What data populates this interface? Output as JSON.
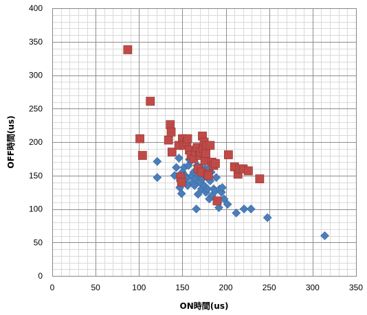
{
  "chart_data": {
    "type": "scatter",
    "title": "",
    "xlabel": "ON時間(us)",
    "ylabel": "OFF時間(us)",
    "xlim": [
      0,
      350
    ],
    "ylim": [
      0,
      400
    ],
    "x_ticks": [
      0,
      50,
      100,
      150,
      200,
      250,
      300,
      350
    ],
    "y_ticks": [
      0,
      50,
      100,
      150,
      200,
      250,
      300,
      350,
      400
    ],
    "minor_grid_x_step": 10,
    "minor_grid_y_step": 10,
    "grid": true,
    "legend": "none",
    "series": [
      {
        "marker": "diamond",
        "color": "#4a7ebb",
        "points": [
          [
            121,
            171
          ],
          [
            121,
            147
          ],
          [
            141,
            150
          ],
          [
            143,
            162
          ],
          [
            146,
            176
          ],
          [
            147,
            132
          ],
          [
            148,
            141
          ],
          [
            149,
            123
          ],
          [
            150,
            155
          ],
          [
            152,
            162
          ],
          [
            153,
            150
          ],
          [
            155,
            145
          ],
          [
            156,
            135
          ],
          [
            157,
            165
          ],
          [
            158,
            174
          ],
          [
            160,
            172
          ],
          [
            161,
            150
          ],
          [
            162,
            140
          ],
          [
            163,
            155
          ],
          [
            164,
            135
          ],
          [
            165,
            145
          ],
          [
            166,
            100
          ],
          [
            167,
            165
          ],
          [
            168,
            122
          ],
          [
            169,
            150
          ],
          [
            170,
            140
          ],
          [
            171,
            162
          ],
          [
            172,
            130
          ],
          [
            173,
            145
          ],
          [
            174,
            155
          ],
          [
            175,
            135
          ],
          [
            176,
            160
          ],
          [
            177,
            125
          ],
          [
            178,
            148
          ],
          [
            179,
            130
          ],
          [
            180,
            160
          ],
          [
            181,
            115
          ],
          [
            182,
            142
          ],
          [
            183,
            155
          ],
          [
            184,
            120
          ],
          [
            186,
            130
          ],
          [
            188,
            127
          ],
          [
            189,
            147
          ],
          [
            191,
            110
          ],
          [
            192,
            102
          ],
          [
            193,
            130
          ],
          [
            195,
            125
          ],
          [
            196,
            132
          ],
          [
            198,
            115
          ],
          [
            202,
            107
          ],
          [
            212,
            94
          ],
          [
            221,
            100
          ],
          [
            229,
            100
          ],
          [
            248,
            87
          ],
          [
            314,
            60
          ]
        ]
      },
      {
        "marker": "square",
        "color": "#be4b48",
        "points": [
          [
            87,
            338
          ],
          [
            101,
            205
          ],
          [
            104,
            180
          ],
          [
            113,
            261
          ],
          [
            134,
            203
          ],
          [
            136,
            226
          ],
          [
            137,
            215
          ],
          [
            138,
            185
          ],
          [
            146,
            195
          ],
          [
            148,
            148
          ],
          [
            149,
            140
          ],
          [
            150,
            205
          ],
          [
            152,
            195
          ],
          [
            155,
            200
          ],
          [
            156,
            205
          ],
          [
            158,
            188
          ],
          [
            160,
            180
          ],
          [
            163,
            175
          ],
          [
            165,
            185
          ],
          [
            167,
            192
          ],
          [
            168,
            160
          ],
          [
            170,
            180
          ],
          [
            171,
            185
          ],
          [
            172,
            155
          ],
          [
            173,
            209
          ],
          [
            174,
            190
          ],
          [
            175,
            200
          ],
          [
            176,
            172
          ],
          [
            177,
            183
          ],
          [
            178,
            195
          ],
          [
            179,
            152
          ],
          [
            180,
            150
          ],
          [
            182,
            195
          ],
          [
            184,
            170
          ],
          [
            186,
            165
          ],
          [
            188,
            168
          ],
          [
            190,
            112
          ],
          [
            203,
            181
          ],
          [
            210,
            163
          ],
          [
            214,
            152
          ],
          [
            216,
            160
          ],
          [
            220,
            160
          ],
          [
            226,
            157
          ],
          [
            239,
            145
          ]
        ]
      }
    ]
  }
}
